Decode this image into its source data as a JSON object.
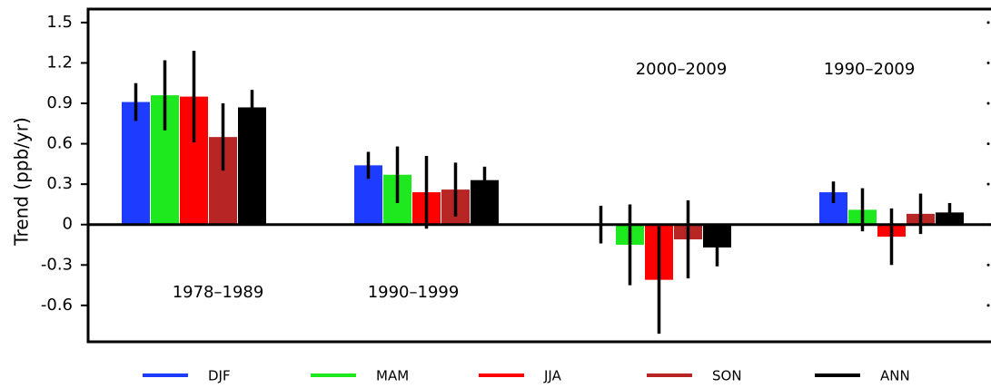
{
  "chart_data": {
    "type": "bar",
    "y_label": "Trend (ppb/yr)",
    "categories": [
      "1978–1989",
      "1990–1999",
      "2000–2009",
      "1990–2009"
    ],
    "series": [
      {
        "name": "DJF",
        "color": "#1d3cff",
        "values": [
          0.91,
          0.44,
          0.0,
          0.24
        ],
        "errors": [
          0.14,
          0.1,
          0.14,
          0.08
        ]
      },
      {
        "name": "MAM",
        "color": "#1ee81e",
        "values": [
          0.96,
          0.37,
          -0.15,
          0.11
        ],
        "errors": [
          0.26,
          0.21,
          0.3,
          0.16
        ]
      },
      {
        "name": "JJA",
        "color": "#ff0000",
        "values": [
          0.95,
          0.24,
          -0.41,
          -0.09
        ],
        "errors": [
          0.34,
          0.27,
          0.4,
          0.21
        ]
      },
      {
        "name": "SON",
        "color": "#b82525",
        "values": [
          0.65,
          0.26,
          -0.11,
          0.08
        ],
        "errors": [
          0.25,
          0.2,
          0.29,
          0.15
        ]
      },
      {
        "name": "ANN",
        "color": "#000000",
        "values": [
          0.87,
          0.33,
          -0.17,
          0.09
        ],
        "errors": [
          0.13,
          0.1,
          0.14,
          0.07
        ]
      }
    ],
    "ylim": [
      -0.87,
      1.6
    ],
    "yticks": [
      -0.6,
      -0.3,
      0,
      0.3,
      0.6,
      0.9,
      1.2,
      1.5
    ]
  }
}
